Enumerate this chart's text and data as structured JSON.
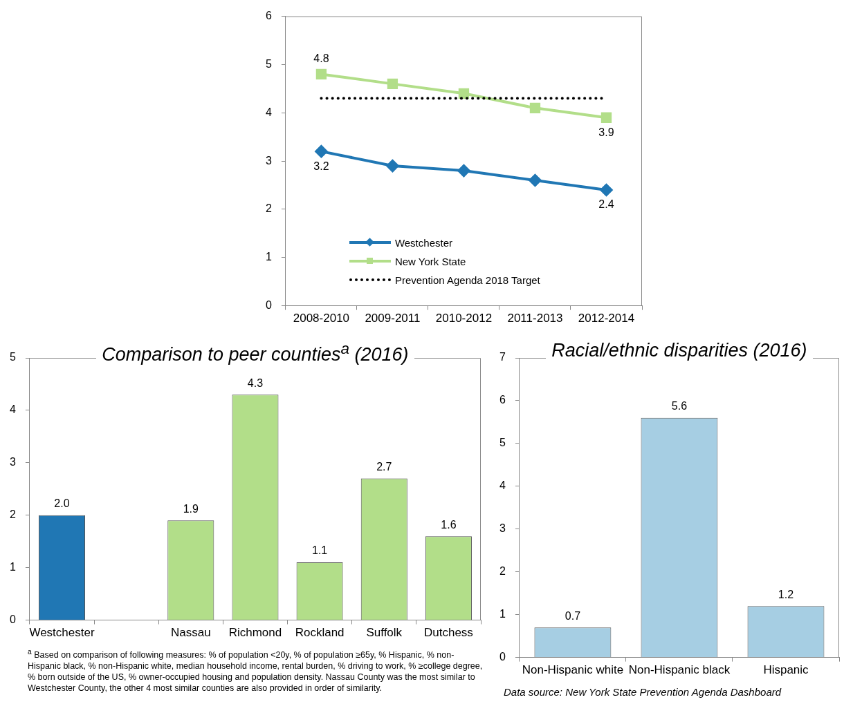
{
  "chart_data": [
    {
      "type": "line",
      "categories": [
        "2008-2010",
        "2009-2011",
        "2010-2012",
        "2011-2013",
        "2012-2014"
      ],
      "series": [
        {
          "name": "Westchester",
          "color": "#2077b4",
          "marker": "diamond",
          "values": [
            3.2,
            2.9,
            2.8,
            2.6,
            2.4
          ],
          "value_labels": [
            "3.2",
            null,
            null,
            null,
            "2.4"
          ]
        },
        {
          "name": "New York State",
          "color": "#b2de89",
          "marker": "square",
          "values": [
            4.8,
            4.6,
            4.4,
            4.1,
            3.9
          ],
          "value_labels": [
            "4.8",
            null,
            null,
            null,
            "3.9"
          ]
        }
      ],
      "ref_lines": [
        {
          "axis": "y",
          "value": 4.3,
          "label": "Prevention Agenda 2018 Target",
          "color": "#000000",
          "line_style": "dotted"
        }
      ],
      "ylim": [
        0,
        6
      ],
      "yticks": [
        0,
        1,
        2,
        3,
        4,
        5,
        6
      ],
      "legend": "bottom left"
    },
    {
      "type": "bar",
      "title": "Comparison to peer counties$^{a}$ (2016)",
      "categories": [
        "Westchester",
        null,
        "Nassau",
        "Richmond",
        "Rockland",
        "Suffolk",
        "Dutchess"
      ],
      "values": [
        2.0,
        null,
        1.9,
        4.3,
        1.1,
        2.7,
        1.6
      ],
      "colors": [
        "#2077b4",
        "#b2de89",
        "#b2de89",
        "#b2de89",
        "#b2de89",
        "#b2de89",
        "#b2de89"
      ],
      "value_labels": [
        "2.0",
        null,
        "1.9",
        "4.3",
        "1.1",
        "2.7",
        "1.6"
      ],
      "ylim": [
        0,
        5
      ],
      "yticks": [
        0,
        1,
        2,
        3,
        4,
        5
      ],
      "annotations": [
        "$^{a}$ Based on comparison of following measures: % of population <20y, % of population ≥65y, % Hispanic, % non-Hispanic black, % non-Hispanic white, median household income, rental burden, % driving to work, % ≥college degree, % born outside of the US, % owner-occupied housing and population density. Nassau County was the most similar to Westchester County, the other 4 most similar counties are also provided in order of similarity."
      ]
    },
    {
      "type": "bar",
      "title": "Racial/ethnic disparities (2016)",
      "categories": [
        "Non-Hispanic white",
        "Non-Hispanic black",
        "Hispanic"
      ],
      "values": [
        0.7,
        5.6,
        1.2
      ],
      "color": "#a6cee3",
      "value_labels": [
        "0.7",
        "5.6",
        "1.2"
      ],
      "ylim": [
        0,
        7
      ],
      "yticks": [
        0,
        1,
        2,
        3,
        4,
        5,
        6,
        7
      ],
      "annotations": [
        "Data source: New York State Prevention Agenda Dashboard"
      ]
    }
  ]
}
